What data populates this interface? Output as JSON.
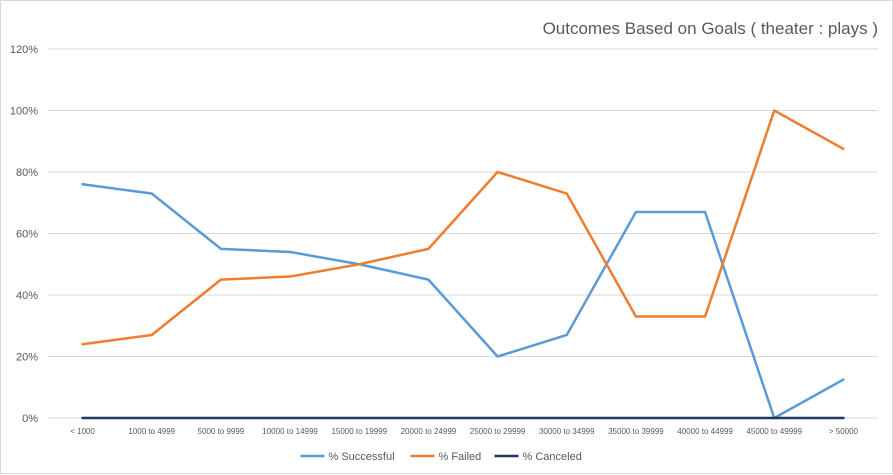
{
  "chart_data": {
    "type": "line",
    "title": "Outcomes Based on Goals ( theater : plays )",
    "xlabel": "",
    "ylabel": "",
    "categories": [
      "< 1000",
      "1000 to 4999",
      "5000 to 9999",
      "10000 to 14999",
      "15000 to 19999",
      "20000 to 24999",
      "25000 to 29999",
      "30000 to 34999",
      "35000 to 39999",
      "40000 to 44999",
      "45000 to 49999",
      "> 50000"
    ],
    "series": [
      {
        "name": "% Successful",
        "color": "#5b9bd5",
        "values": [
          76,
          73,
          55,
          54,
          50,
          45,
          20,
          27,
          67,
          67,
          0,
          12.5
        ]
      },
      {
        "name": "% Failed",
        "color": "#ed7d31",
        "values": [
          24,
          27,
          45,
          46,
          50,
          55,
          80,
          73,
          33,
          33,
          100,
          87.5
        ]
      },
      {
        "name": "% Canceled",
        "color": "#1f3864",
        "values": [
          0,
          0,
          0,
          0,
          0,
          0,
          0,
          0,
          0,
          0,
          0,
          0
        ]
      }
    ],
    "ylim": [
      0,
      120
    ],
    "yticks": [
      0,
      20,
      40,
      60,
      80,
      100,
      120
    ],
    "ytick_labels": [
      "0%",
      "20%",
      "40%",
      "60%",
      "80%",
      "100%",
      "120%"
    ],
    "grid": true,
    "legend_position": "bottom"
  }
}
